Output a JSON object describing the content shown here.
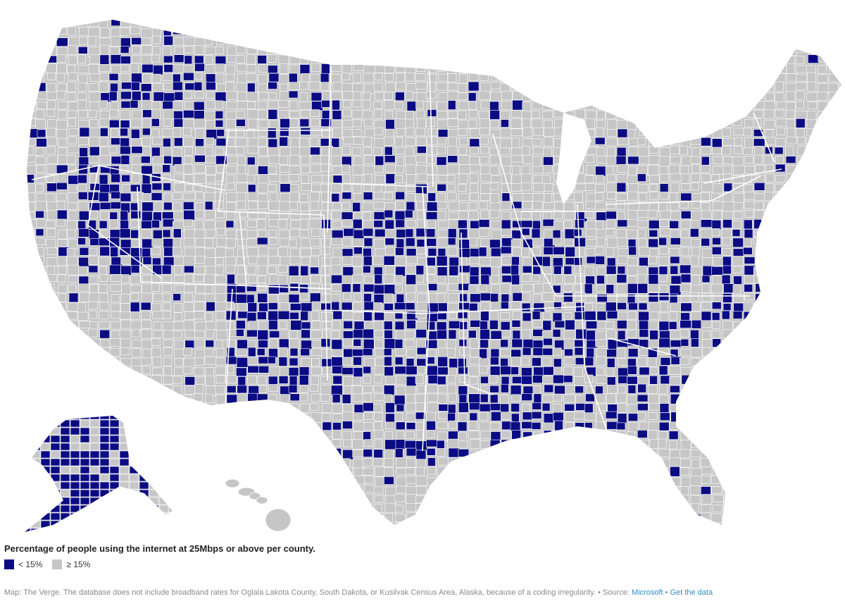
{
  "map": {
    "fill_colors": {
      "low": "#0b0b83",
      "high": "#c6c6c6",
      "border": "#ffffff"
    },
    "regions": [
      "contiguous-us",
      "alaska",
      "hawaii"
    ]
  },
  "legend": {
    "title": "Percentage of people using the internet at 25Mbps or above per county.",
    "items": [
      {
        "label": "< 15%",
        "color": "#0b0b83"
      },
      {
        "label": "≥ 15%",
        "color": "#c6c6c6"
      }
    ]
  },
  "footer": {
    "text": "Map: The Verge. The database does not include broadband rates for Oglala Lakota County, South Dakota, or Kusilvak Census Area, Alaska, because of a coding irregularity.",
    "source_prefix": "• Source:",
    "source_link": "Microsoft",
    "separator": "•",
    "data_link": "Get the data"
  }
}
